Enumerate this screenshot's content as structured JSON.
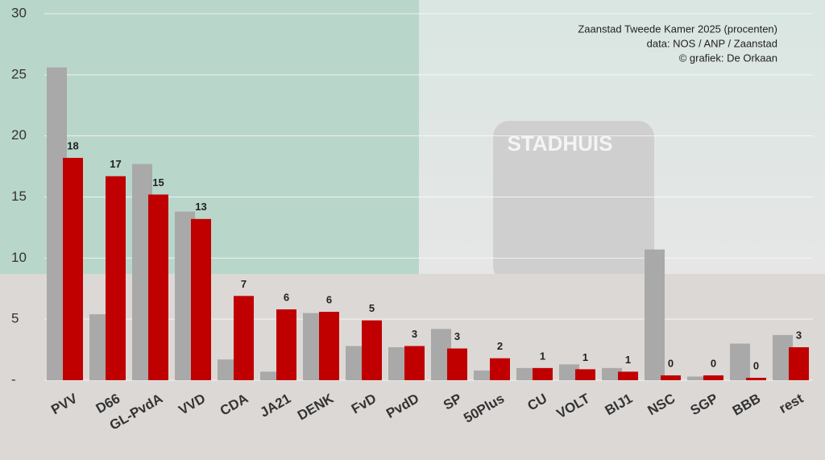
{
  "chart_data": {
    "type": "bar",
    "title": "Zaanstad Tweede Kamer 2025 (procenten)",
    "subtitle": "data: NOS / ANP / Zaanstad",
    "credit": "© grafiek: De Orkaan",
    "categories": [
      "PVV",
      "D66",
      "GL-PvdA",
      "VVD",
      "CDA",
      "JA21",
      "DENK",
      "FvD",
      "PvdD",
      "SP",
      "50Plus",
      "CU",
      "VOLT",
      "BIJ1",
      "NSC",
      "SGP",
      "BBB",
      "rest"
    ],
    "series": [
      {
        "color": "#a9a9a9",
        "values": [
          25.6,
          5.4,
          17.7,
          13.8,
          1.7,
          0.7,
          5.5,
          2.8,
          2.7,
          4.2,
          0.8,
          1.0,
          1.3,
          1.0,
          10.7,
          0.3,
          3.0,
          3.7
        ]
      },
      {
        "color": "#c00000",
        "values": [
          18.2,
          16.7,
          15.2,
          13.2,
          6.9,
          5.8,
          5.6,
          4.9,
          2.8,
          2.6,
          1.8,
          1.0,
          0.9,
          0.7,
          0.4,
          0.4,
          0.2,
          2.7
        ],
        "value_labels": [
          "18",
          "17",
          "15",
          "13",
          "7",
          "6",
          "6",
          "5",
          "3",
          "3",
          "2",
          "1",
          "1",
          "1",
          "0",
          "0",
          "0",
          "3"
        ]
      }
    ],
    "ylim": [
      0,
      30
    ],
    "yticks": [
      {
        "value": 0,
        "label": "-"
      },
      5,
      10,
      15,
      20,
      25,
      30
    ],
    "grid": true
  }
}
